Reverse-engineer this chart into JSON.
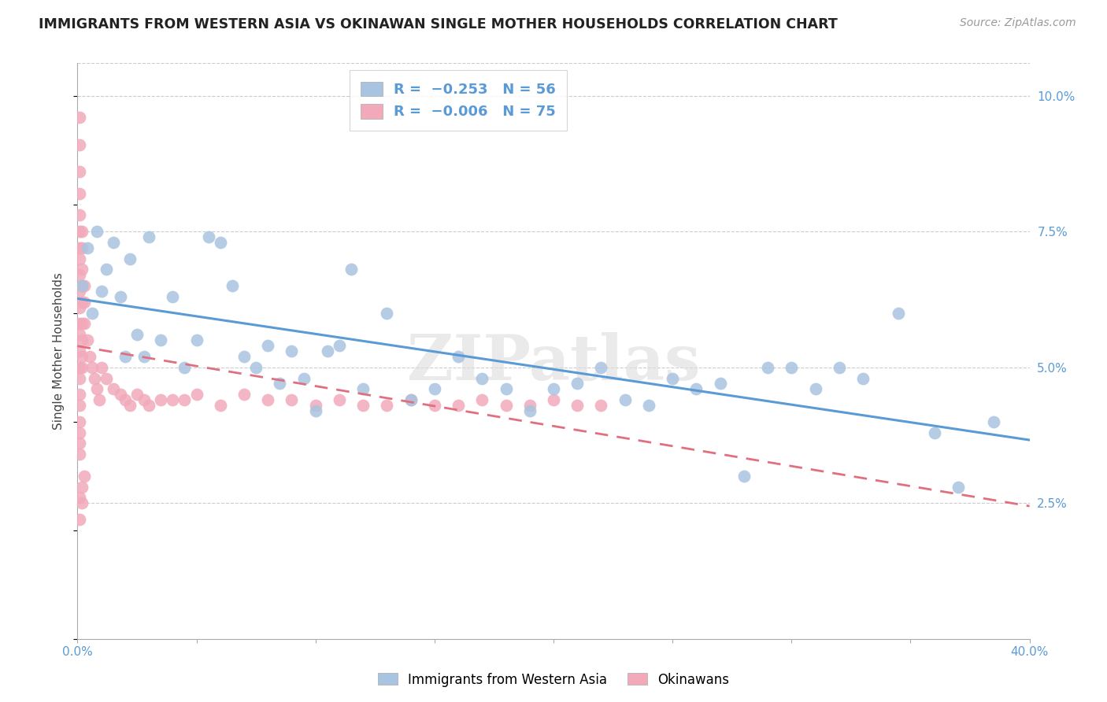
{
  "title": "IMMIGRANTS FROM WESTERN ASIA VS OKINAWAN SINGLE MOTHER HOUSEHOLDS CORRELATION CHART",
  "source": "Source: ZipAtlas.com",
  "ylabel": "Single Mother Households",
  "xlim": [
    0.0,
    0.4
  ],
  "ylim": [
    0.0,
    0.106
  ],
  "blue_color": "#a8c4e0",
  "pink_color": "#f2aabb",
  "blue_line_color": "#5b9bd5",
  "pink_line_color": "#e07080",
  "watermark": "ZIPatlas",
  "blue_scatter_x": [
    0.002,
    0.004,
    0.006,
    0.008,
    0.01,
    0.012,
    0.015,
    0.018,
    0.02,
    0.022,
    0.025,
    0.028,
    0.03,
    0.035,
    0.04,
    0.045,
    0.05,
    0.055,
    0.06,
    0.065,
    0.07,
    0.075,
    0.08,
    0.085,
    0.09,
    0.095,
    0.1,
    0.105,
    0.11,
    0.115,
    0.12,
    0.13,
    0.14,
    0.15,
    0.16,
    0.17,
    0.18,
    0.19,
    0.2,
    0.21,
    0.22,
    0.23,
    0.24,
    0.25,
    0.26,
    0.27,
    0.28,
    0.29,
    0.3,
    0.31,
    0.32,
    0.33,
    0.345,
    0.36,
    0.37,
    0.385
  ],
  "blue_scatter_y": [
    0.065,
    0.072,
    0.06,
    0.075,
    0.064,
    0.068,
    0.073,
    0.063,
    0.052,
    0.07,
    0.056,
    0.052,
    0.074,
    0.055,
    0.063,
    0.05,
    0.055,
    0.074,
    0.073,
    0.065,
    0.052,
    0.05,
    0.054,
    0.047,
    0.053,
    0.048,
    0.042,
    0.053,
    0.054,
    0.068,
    0.046,
    0.06,
    0.044,
    0.046,
    0.052,
    0.048,
    0.046,
    0.042,
    0.046,
    0.047,
    0.05,
    0.044,
    0.043,
    0.048,
    0.046,
    0.047,
    0.03,
    0.05,
    0.05,
    0.046,
    0.05,
    0.048,
    0.06,
    0.038,
    0.028,
    0.04
  ],
  "pink_scatter_x": [
    0.001,
    0.001,
    0.001,
    0.001,
    0.001,
    0.001,
    0.001,
    0.001,
    0.001,
    0.001,
    0.001,
    0.001,
    0.001,
    0.001,
    0.001,
    0.001,
    0.001,
    0.001,
    0.001,
    0.001,
    0.001,
    0.001,
    0.002,
    0.002,
    0.002,
    0.002,
    0.002,
    0.002,
    0.002,
    0.002,
    0.002,
    0.003,
    0.003,
    0.003,
    0.004,
    0.005,
    0.006,
    0.007,
    0.008,
    0.009,
    0.01,
    0.012,
    0.015,
    0.018,
    0.02,
    0.022,
    0.025,
    0.028,
    0.03,
    0.035,
    0.04,
    0.045,
    0.05,
    0.06,
    0.07,
    0.08,
    0.09,
    0.1,
    0.11,
    0.12,
    0.13,
    0.14,
    0.15,
    0.16,
    0.17,
    0.18,
    0.19,
    0.2,
    0.21,
    0.22,
    0.001,
    0.001,
    0.002,
    0.002,
    0.003
  ],
  "pink_scatter_y": [
    0.096,
    0.091,
    0.086,
    0.082,
    0.078,
    0.075,
    0.072,
    0.07,
    0.067,
    0.064,
    0.061,
    0.058,
    0.056,
    0.053,
    0.05,
    0.048,
    0.045,
    0.043,
    0.04,
    0.038,
    0.036,
    0.034,
    0.075,
    0.072,
    0.068,
    0.065,
    0.062,
    0.058,
    0.055,
    0.052,
    0.05,
    0.065,
    0.062,
    0.058,
    0.055,
    0.052,
    0.05,
    0.048,
    0.046,
    0.044,
    0.05,
    0.048,
    0.046,
    0.045,
    0.044,
    0.043,
    0.045,
    0.044,
    0.043,
    0.044,
    0.044,
    0.044,
    0.045,
    0.043,
    0.045,
    0.044,
    0.044,
    0.043,
    0.044,
    0.043,
    0.043,
    0.044,
    0.043,
    0.043,
    0.044,
    0.043,
    0.043,
    0.044,
    0.043,
    0.043,
    0.026,
    0.022,
    0.028,
    0.025,
    0.03
  ]
}
